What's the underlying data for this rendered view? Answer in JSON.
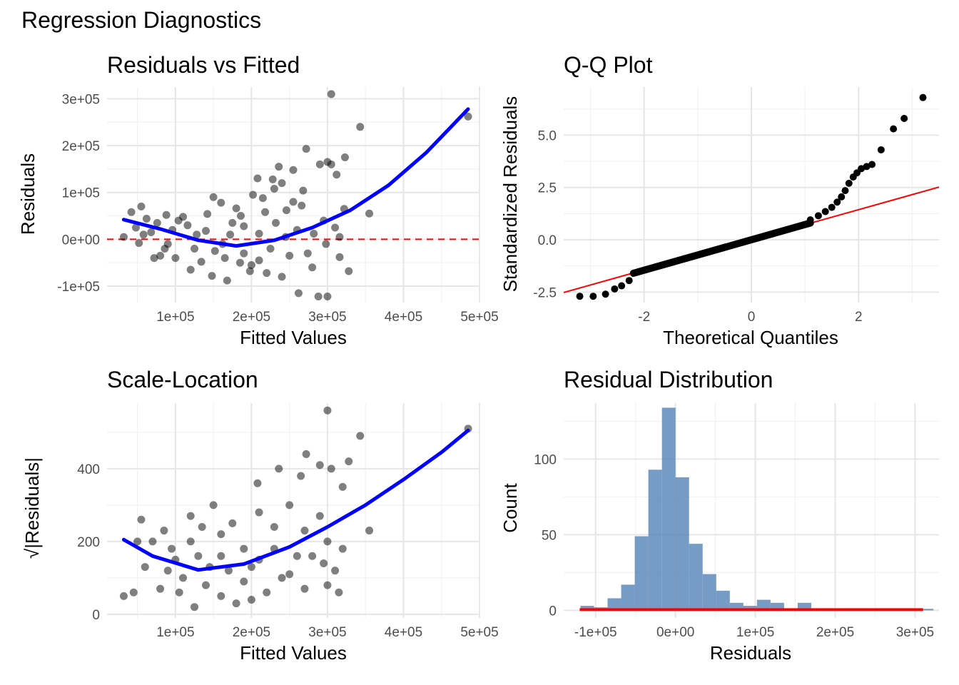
{
  "figure": {
    "title": "Regression Diagnostics",
    "colors": {
      "points": "#000000",
      "smooth": "#0000FF",
      "reference": "#FF0000",
      "histogram_fill": "#4F7FB4",
      "grid": "#E6E6E6"
    }
  },
  "chart_data": [
    {
      "id": "residuals-vs-fitted",
      "type": "scatter",
      "title": "Residuals vs Fitted",
      "xlabel": "Fitted Values",
      "ylabel": "Residuals",
      "xlim": [
        10000,
        500000
      ],
      "ylim": [
        -135000,
        325000
      ],
      "xticks": [
        100000,
        200000,
        300000,
        400000,
        500000
      ],
      "xtick_labels": [
        "1e+05",
        "2e+05",
        "3e+05",
        "4e+05",
        "5e+05"
      ],
      "yticks": [
        -100000,
        0,
        100000,
        200000,
        300000
      ],
      "ytick_labels": [
        "-1e+05",
        "0e+00",
        "1e+05",
        "2e+05",
        "3e+05"
      ],
      "grid": true,
      "points": [
        [
          32000,
          5000
        ],
        [
          42000,
          58000
        ],
        [
          48000,
          25000
        ],
        [
          55000,
          70000
        ],
        [
          305000,
          310000
        ],
        [
          485000,
          262000
        ],
        [
          343000,
          240000
        ],
        [
          272000,
          193000
        ],
        [
          355000,
          55000
        ],
        [
          328000,
          -68000
        ],
        [
          300000,
          -122000
        ],
        [
          288000,
          -122000
        ],
        [
          262000,
          -115000
        ],
        [
          323000,
          175000
        ],
        [
          208000,
          130000
        ],
        [
          236000,
          155000
        ],
        [
          290000,
          160000
        ],
        [
          305000,
          160000
        ],
        [
          300000,
          165000
        ],
        [
          255000,
          148000
        ],
        [
          228000,
          128000
        ],
        [
          198000,
          -68000
        ],
        [
          168000,
          -88000
        ],
        [
          148000,
          -78000
        ],
        [
          120000,
          -65000
        ],
        [
          90000,
          -10000
        ],
        [
          110000,
          48000
        ],
        [
          160000,
          78000
        ],
        [
          180000,
          66000
        ],
        [
          230000,
          108000
        ],
        [
          266000,
          72000
        ],
        [
          312000,
          138000
        ],
        [
          322000,
          65000
        ],
        [
          250000,
          -35000
        ],
        [
          240000,
          -80000
        ],
        [
          220000,
          -72000
        ],
        [
          280000,
          -60000
        ],
        [
          316000,
          -38000
        ],
        [
          295000,
          40000
        ],
        [
          310000,
          25000
        ],
        [
          202000,
          95000
        ],
        [
          186000,
          50000
        ],
        [
          172000,
          10000
        ],
        [
          152000,
          -25000
        ],
        [
          134000,
          -48000
        ],
        [
          116000,
          30000
        ],
        [
          104000,
          40000
        ],
        [
          96000,
          20000
        ],
        [
          86000,
          -20000
        ],
        [
          76000,
          35000
        ],
        [
          68000,
          15000
        ],
        [
          62000,
          44000
        ],
        [
          52000,
          -8000
        ],
        [
          58000,
          10000
        ],
        [
          80000,
          -35000
        ],
        [
          100000,
          -40000
        ],
        [
          128000,
          10000
        ],
        [
          142000,
          54000
        ],
        [
          162000,
          -10000
        ],
        [
          190000,
          -30000
        ],
        [
          210000,
          12000
        ],
        [
          218000,
          58000
        ],
        [
          232000,
          35000
        ],
        [
          246000,
          62000
        ],
        [
          260000,
          20000
        ],
        [
          274000,
          -30000
        ],
        [
          282000,
          12000
        ],
        [
          298000,
          -10000
        ],
        [
          316000,
          5000
        ],
        [
          190000,
          28000
        ],
        [
          175000,
          35000
        ],
        [
          165000,
          -40000
        ],
        [
          140000,
          18000
        ],
        [
          125000,
          -20000
        ],
        [
          210000,
          -45000
        ],
        [
          225000,
          -20000
        ],
        [
          245000,
          5000
        ],
        [
          255000,
          80000
        ],
        [
          268000,
          104000
        ],
        [
          240000,
          120000
        ],
        [
          215000,
          88000
        ],
        [
          200000,
          -55000
        ],
        [
          185000,
          -50000
        ],
        [
          150000,
          90000
        ],
        [
          72000,
          -40000
        ],
        [
          88000,
          52000
        ]
      ],
      "smooth": [
        [
          32000,
          42000
        ],
        [
          80000,
          22000
        ],
        [
          130000,
          -2000
        ],
        [
          180000,
          -14000
        ],
        [
          230000,
          -2000
        ],
        [
          280000,
          25000
        ],
        [
          330000,
          62000
        ],
        [
          380000,
          115000
        ],
        [
          430000,
          185000
        ],
        [
          485000,
          278000
        ]
      ],
      "hline": 0
    },
    {
      "id": "qq-plot",
      "type": "scatter",
      "title": "Q-Q Plot",
      "xlabel": "Theoretical Quantiles",
      "ylabel": "Standardized Residuals",
      "xlim": [
        -3.5,
        3.5
      ],
      "ylim": [
        -3.0,
        7.3
      ],
      "xticks": [
        -2,
        0,
        2
      ],
      "xtick_labels": [
        "-2",
        "0",
        "2"
      ],
      "yticks": [
        -2.5,
        0.0,
        2.5,
        5.0
      ],
      "ytick_labels": [
        "-2.5",
        "0.0",
        "2.5",
        "5.0"
      ],
      "grid": true,
      "points": [
        [
          3.2,
          6.8
        ],
        [
          2.85,
          5.8
        ],
        [
          2.65,
          5.3
        ],
        [
          2.42,
          4.3
        ],
        [
          2.25,
          3.6
        ],
        [
          2.15,
          3.5
        ],
        [
          2.05,
          3.4
        ],
        [
          1.97,
          3.2
        ],
        [
          1.9,
          3.0
        ],
        [
          1.82,
          2.7
        ],
        [
          1.75,
          2.35
        ],
        [
          1.68,
          2.05
        ],
        [
          1.6,
          1.8
        ],
        [
          1.5,
          1.55
        ],
        [
          1.38,
          1.35
        ],
        [
          1.25,
          1.15
        ],
        [
          1.1,
          0.95
        ],
        [
          -3.2,
          -2.7
        ],
        [
          -2.95,
          -2.7
        ],
        [
          -2.72,
          -2.6
        ],
        [
          -2.55,
          -2.35
        ],
        [
          -2.42,
          -2.2
        ],
        [
          -2.28,
          -1.95
        ]
      ],
      "line": {
        "slope": 0.72,
        "intercept": 0.0
      }
    },
    {
      "id": "scale-location",
      "type": "scatter",
      "title": "Scale-Location",
      "xlabel": "Fitted Values",
      "ylabel": "√|Residuals|",
      "xlim": [
        10000,
        500000
      ],
      "ylim": [
        -10,
        580
      ],
      "xticks": [
        100000,
        200000,
        300000,
        400000,
        500000
      ],
      "xtick_labels": [
        "1e+05",
        "2e+05",
        "3e+05",
        "4e+05",
        "5e+05"
      ],
      "yticks": [
        0,
        200,
        400
      ],
      "ytick_labels": [
        "0",
        "200",
        "400"
      ],
      "grid": true,
      "points": [
        [
          485000,
          510000
        ],
        [
          300000,
          560000
        ],
        [
          343000,
          490000
        ],
        [
          328000,
          420000
        ],
        [
          272000,
          440000
        ],
        [
          236000,
          400000
        ],
        [
          355000,
          230000
        ],
        [
          208000,
          360000
        ],
        [
          290000,
          410000
        ],
        [
          305000,
          400000
        ],
        [
          265000,
          380000
        ],
        [
          320000,
          350000
        ],
        [
          32000,
          50000
        ],
        [
          45000,
          60000
        ],
        [
          50000,
          200000
        ],
        [
          55000,
          260000
        ],
        [
          60000,
          130000
        ],
        [
          70000,
          200000
        ],
        [
          85000,
          230000
        ],
        [
          95000,
          180000
        ],
        [
          120000,
          270000
        ],
        [
          150000,
          300000
        ],
        [
          160000,
          220000
        ],
        [
          175000,
          250000
        ],
        [
          190000,
          180000
        ],
        [
          210000,
          280000
        ],
        [
          230000,
          240000
        ],
        [
          250000,
          300000
        ],
        [
          270000,
          230000
        ],
        [
          290000,
          270000
        ],
        [
          300000,
          200000
        ],
        [
          310000,
          120000
        ],
        [
          315000,
          60000
        ],
        [
          300000,
          80000
        ],
        [
          260000,
          160000
        ],
        [
          240000,
          100000
        ],
        [
          220000,
          60000
        ],
        [
          200000,
          40000
        ],
        [
          180000,
          30000
        ],
        [
          160000,
          50000
        ],
        [
          140000,
          80000
        ],
        [
          125000,
          20000
        ],
        [
          110000,
          100000
        ],
        [
          100000,
          150000
        ],
        [
          90000,
          120000
        ],
        [
          80000,
          70000
        ],
        [
          130000,
          160000
        ],
        [
          170000,
          120000
        ],
        [
          190000,
          90000
        ],
        [
          210000,
          150000
        ],
        [
          230000,
          180000
        ],
        [
          250000,
          110000
        ],
        [
          270000,
          70000
        ],
        [
          280000,
          160000
        ],
        [
          295000,
          140000
        ],
        [
          320000,
          180000
        ],
        [
          200000,
          130000
        ],
        [
          160000,
          160000
        ],
        [
          145000,
          130000
        ],
        [
          120000,
          200000
        ],
        [
          105000,
          60000
        ],
        [
          135000,
          240000
        ]
      ],
      "smooth": [
        [
          32000,
          205000
        ],
        [
          70000,
          160000
        ],
        [
          130000,
          122000
        ],
        [
          190000,
          138000
        ],
        [
          250000,
          185000
        ],
        [
          300000,
          240000
        ],
        [
          350000,
          300000
        ],
        [
          400000,
          370000
        ],
        [
          450000,
          445000
        ],
        [
          485000,
          505000
        ]
      ],
      "note": "Scale-Location point y-values are stored in the √|Residuals| axis units multiplied by 1000; the axis ticks read 0, 200, 400."
    },
    {
      "id": "residual-distribution",
      "type": "bar",
      "title": "Residual Distribution",
      "xlabel": "Residuals",
      "ylabel": "Count",
      "xlim": [
        -140000,
        330000
      ],
      "ylim": [
        -5,
        137
      ],
      "xticks": [
        -100000,
        0,
        100000,
        200000,
        300000
      ],
      "xtick_labels": [
        "-1e+05",
        "0e+00",
        "1e+05",
        "2e+05",
        "3e+05"
      ],
      "yticks": [
        0,
        50,
        100
      ],
      "ytick_labels": [
        "0",
        "50",
        "100"
      ],
      "grid": true,
      "bin_width": 17000,
      "bins": [
        {
          "start": -119000,
          "count": 3
        },
        {
          "start": -102000,
          "count": 2
        },
        {
          "start": -85000,
          "count": 8
        },
        {
          "start": -68000,
          "count": 17
        },
        {
          "start": -51000,
          "count": 49
        },
        {
          "start": -34000,
          "count": 93
        },
        {
          "start": -17000,
          "count": 134
        },
        {
          "start": 0,
          "count": 88
        },
        {
          "start": 17000,
          "count": 44
        },
        {
          "start": 34000,
          "count": 24
        },
        {
          "start": 51000,
          "count": 13
        },
        {
          "start": 68000,
          "count": 5
        },
        {
          "start": 85000,
          "count": 3
        },
        {
          "start": 102000,
          "count": 7
        },
        {
          "start": 119000,
          "count": 5
        },
        {
          "start": 136000,
          "count": 1
        },
        {
          "start": 153000,
          "count": 5
        },
        {
          "start": 170000,
          "count": 1
        },
        {
          "start": 289000,
          "count": 1
        },
        {
          "start": 306000,
          "count": 1
        }
      ],
      "density_line": {
        "from": -120000,
        "to": 310000,
        "level": 0.5
      }
    }
  ]
}
